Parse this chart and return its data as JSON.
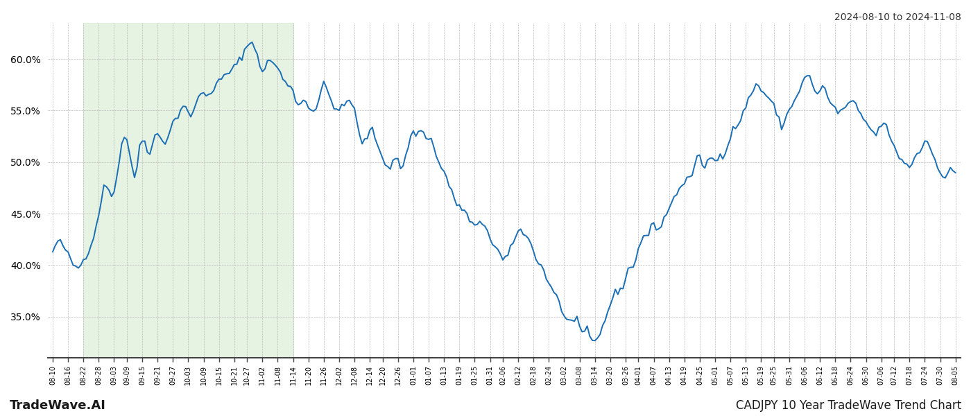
{
  "title_top_right": "2024-08-10 to 2024-11-08",
  "title_bottom_right": "CADJPY 10 Year TradeWave Trend Chart",
  "title_bottom_left": "TradeWave.AI",
  "line_color": "#1a6eb5",
  "line_width": 1.4,
  "shade_color": "#c8e6c0",
  "shade_alpha": 0.45,
  "bg_color": "#ffffff",
  "grid_color": "#bbbbbb",
  "ylim": [
    31.0,
    63.5
  ],
  "yticks": [
    35.0,
    40.0,
    45.0,
    50.0,
    55.0,
    60.0
  ],
  "shade_start_label": "08-22",
  "shade_end_label": "11-14",
  "x_labels": [
    "08-10",
    "08-16",
    "08-22",
    "08-28",
    "09-03",
    "09-09",
    "09-15",
    "09-21",
    "09-27",
    "10-03",
    "10-09",
    "10-15",
    "10-21",
    "10-27",
    "11-02",
    "11-08",
    "11-14",
    "11-20",
    "11-26",
    "12-02",
    "12-08",
    "12-14",
    "12-20",
    "12-26",
    "01-01",
    "01-07",
    "01-13",
    "01-19",
    "01-25",
    "01-31",
    "02-06",
    "02-12",
    "02-18",
    "02-24",
    "03-02",
    "03-08",
    "03-14",
    "03-20",
    "03-26",
    "04-01",
    "04-07",
    "04-13",
    "04-19",
    "04-25",
    "05-01",
    "05-07",
    "05-13",
    "05-19",
    "05-25",
    "05-31",
    "06-06",
    "06-12",
    "06-18",
    "06-24",
    "06-30",
    "07-06",
    "07-12",
    "07-18",
    "07-24",
    "07-30",
    "08-05"
  ],
  "keypoints": [
    [
      0,
      41.2
    ],
    [
      6,
      41.0
    ],
    [
      10,
      39.8
    ],
    [
      12,
      40.5
    ],
    [
      18,
      45.0
    ],
    [
      20,
      47.5
    ],
    [
      24,
      47.2
    ],
    [
      26,
      50.2
    ],
    [
      28,
      52.5
    ],
    [
      30,
      51.0
    ],
    [
      32,
      48.5
    ],
    [
      34,
      51.5
    ],
    [
      36,
      52.0
    ],
    [
      38,
      51.0
    ],
    [
      40,
      52.5
    ],
    [
      44,
      52.0
    ],
    [
      46,
      53.2
    ],
    [
      50,
      55.0
    ],
    [
      52,
      55.5
    ],
    [
      54,
      54.2
    ],
    [
      56,
      55.8
    ],
    [
      60,
      56.5
    ],
    [
      64,
      57.5
    ],
    [
      68,
      58.5
    ],
    [
      72,
      59.5
    ],
    [
      76,
      61.2
    ],
    [
      80,
      60.5
    ],
    [
      82,
      58.5
    ],
    [
      84,
      60.0
    ],
    [
      86,
      59.5
    ],
    [
      88,
      59.2
    ],
    [
      90,
      58.0
    ],
    [
      92,
      57.5
    ],
    [
      94,
      57.0
    ],
    [
      96,
      55.5
    ],
    [
      98,
      56.0
    ],
    [
      100,
      55.5
    ],
    [
      102,
      55.0
    ],
    [
      104,
      56.0
    ],
    [
      106,
      57.5
    ],
    [
      108,
      56.5
    ],
    [
      110,
      55.5
    ],
    [
      112,
      55.0
    ],
    [
      114,
      55.5
    ],
    [
      116,
      56.0
    ],
    [
      118,
      55.0
    ],
    [
      120,
      52.5
    ],
    [
      122,
      52.0
    ],
    [
      124,
      53.0
    ],
    [
      126,
      52.5
    ],
    [
      128,
      51.0
    ],
    [
      130,
      50.0
    ],
    [
      132,
      49.5
    ],
    [
      134,
      50.5
    ],
    [
      136,
      49.5
    ],
    [
      138,
      50.5
    ],
    [
      140,
      52.5
    ],
    [
      142,
      52.8
    ],
    [
      144,
      53.0
    ],
    [
      146,
      52.5
    ],
    [
      148,
      52.2
    ],
    [
      150,
      50.5
    ],
    [
      152,
      49.5
    ],
    [
      154,
      48.5
    ],
    [
      156,
      47.0
    ],
    [
      158,
      46.0
    ],
    [
      160,
      45.5
    ],
    [
      162,
      44.8
    ],
    [
      164,
      44.0
    ],
    [
      166,
      43.8
    ],
    [
      168,
      44.0
    ],
    [
      170,
      43.5
    ],
    [
      172,
      42.0
    ],
    [
      174,
      41.5
    ],
    [
      176,
      40.5
    ],
    [
      178,
      41.0
    ],
    [
      180,
      42.0
    ],
    [
      182,
      43.5
    ],
    [
      184,
      43.0
    ],
    [
      186,
      42.5
    ],
    [
      188,
      41.5
    ],
    [
      190,
      40.2
    ],
    [
      192,
      39.5
    ],
    [
      194,
      38.2
    ],
    [
      196,
      37.5
    ],
    [
      198,
      36.5
    ],
    [
      200,
      35.0
    ],
    [
      202,
      34.5
    ],
    [
      204,
      34.8
    ],
    [
      205,
      35.2
    ],
    [
      206,
      34.0
    ],
    [
      208,
      33.5
    ],
    [
      210,
      33.0
    ],
    [
      211,
      32.5
    ],
    [
      212,
      32.5
    ],
    [
      213,
      32.8
    ],
    [
      215,
      34.0
    ],
    [
      217,
      35.5
    ],
    [
      219,
      36.8
    ],
    [
      221,
      37.5
    ],
    [
      223,
      38.0
    ],
    [
      225,
      39.5
    ],
    [
      227,
      40.0
    ],
    [
      229,
      41.5
    ],
    [
      231,
      42.8
    ],
    [
      233,
      43.0
    ],
    [
      235,
      44.0
    ],
    [
      237,
      43.5
    ],
    [
      239,
      44.5
    ],
    [
      241,
      45.5
    ],
    [
      243,
      46.5
    ],
    [
      245,
      47.5
    ],
    [
      247,
      48.0
    ],
    [
      249,
      48.5
    ],
    [
      251,
      49.5
    ],
    [
      253,
      50.5
    ],
    [
      255,
      49.5
    ],
    [
      257,
      50.5
    ],
    [
      259,
      50.0
    ],
    [
      261,
      50.8
    ],
    [
      263,
      51.0
    ],
    [
      265,
      52.5
    ],
    [
      267,
      53.5
    ],
    [
      269,
      54.0
    ],
    [
      271,
      55.5
    ],
    [
      273,
      56.5
    ],
    [
      275,
      57.5
    ],
    [
      277,
      57.0
    ],
    [
      279,
      56.5
    ],
    [
      281,
      55.8
    ],
    [
      283,
      54.8
    ],
    [
      285,
      53.5
    ],
    [
      287,
      54.5
    ],
    [
      289,
      55.5
    ],
    [
      291,
      56.5
    ],
    [
      293,
      57.5
    ],
    [
      295,
      58.5
    ],
    [
      297,
      57.5
    ],
    [
      299,
      56.5
    ],
    [
      301,
      57.5
    ],
    [
      303,
      56.2
    ],
    [
      305,
      55.5
    ],
    [
      307,
      54.8
    ],
    [
      309,
      55.2
    ],
    [
      311,
      55.5
    ],
    [
      313,
      55.8
    ],
    [
      315,
      55.0
    ],
    [
      317,
      54.2
    ],
    [
      319,
      53.5
    ],
    [
      321,
      52.8
    ],
    [
      323,
      53.0
    ],
    [
      325,
      54.0
    ],
    [
      327,
      52.5
    ],
    [
      329,
      51.5
    ],
    [
      331,
      50.5
    ],
    [
      333,
      50.0
    ],
    [
      335,
      49.5
    ],
    [
      337,
      50.5
    ],
    [
      339,
      51.0
    ],
    [
      341,
      52.0
    ],
    [
      343,
      51.5
    ],
    [
      345,
      50.2
    ],
    [
      347,
      49.2
    ],
    [
      349,
      48.5
    ],
    [
      351,
      49.2
    ],
    [
      352,
      49.0
    ],
    [
      353,
      49.0
    ]
  ]
}
